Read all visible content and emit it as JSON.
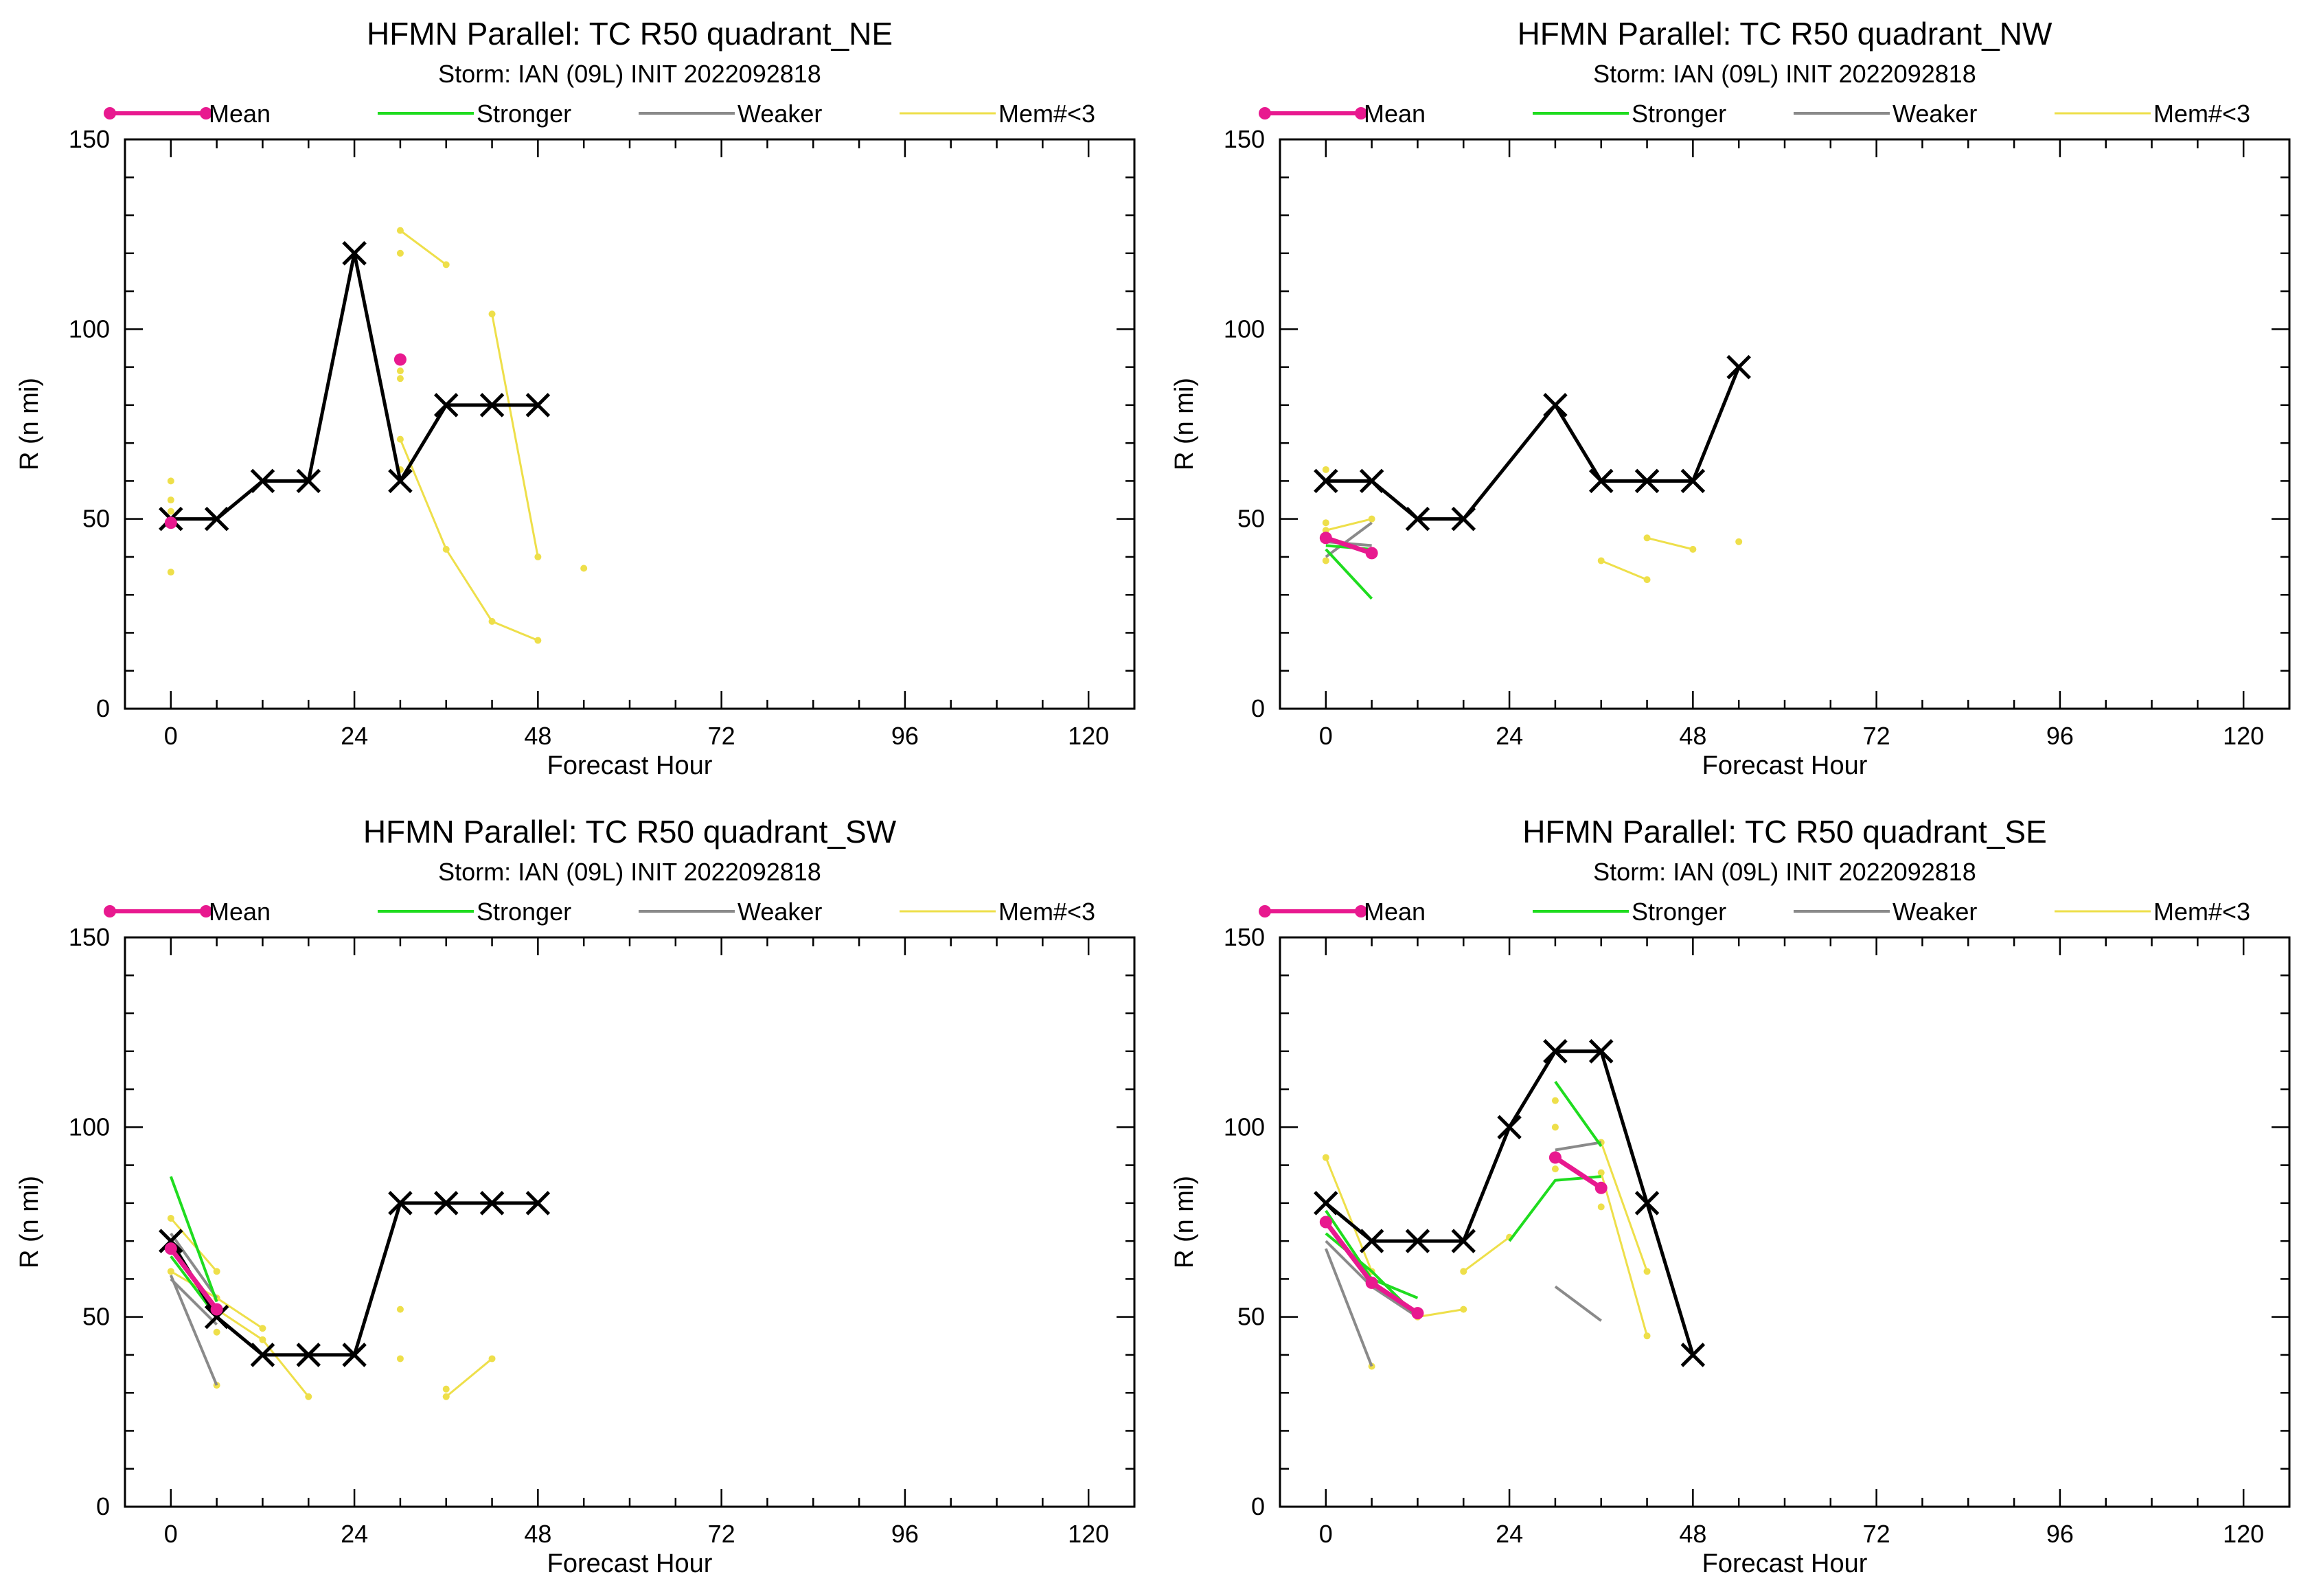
{
  "colors": {
    "mean": "#e8198f",
    "stronger": "#1fdc1f",
    "weaker": "#8a8a8a",
    "few_members": "#eedf4a",
    "official": "#000000"
  },
  "legend": {
    "mean": "Mean",
    "stronger": "Stronger",
    "weaker": "Weaker",
    "few_members": "Mem#<3"
  },
  "chart_data": [
    {
      "type": "line",
      "title": "HFMN Parallel: TC  R50 quadrant_NE",
      "subtitle": "Storm: IAN (09L) INIT 2022092818",
      "xlabel": "Forecast Hour",
      "ylabel": "R (n mi)",
      "xlim": [
        -6,
        126
      ],
      "ylim": [
        0,
        150
      ],
      "xticks": [
        0,
        24,
        48,
        72,
        96,
        120
      ],
      "yticks": [
        0,
        50,
        100,
        150
      ],
      "legend_position": "top",
      "official": {
        "x": [
          0,
          6,
          12,
          18,
          24,
          30,
          36,
          42,
          48
        ],
        "y": [
          50,
          50,
          60,
          60,
          120,
          60,
          80,
          80,
          80
        ]
      },
      "mean": [
        {
          "x": [
            0
          ],
          "y": [
            49
          ]
        },
        {
          "x": [
            30
          ],
          "y": [
            92
          ]
        }
      ],
      "stronger": [],
      "weaker": [],
      "few_members": [
        {
          "x": [
            30,
            36
          ],
          "y": [
            126,
            117
          ]
        },
        {
          "x": [
            30,
            36,
            42,
            48
          ],
          "y": [
            71,
            42,
            23,
            18
          ]
        },
        {
          "x": [
            42,
            48
          ],
          "y": [
            104,
            40
          ]
        },
        {
          "x": [
            0
          ],
          "y": [
            60
          ]
        },
        {
          "x": [
            0
          ],
          "y": [
            55
          ]
        },
        {
          "x": [
            0
          ],
          "y": [
            52
          ]
        },
        {
          "x": [
            0
          ],
          "y": [
            36
          ]
        },
        {
          "x": [
            30
          ],
          "y": [
            120
          ]
        },
        {
          "x": [
            30
          ],
          "y": [
            89
          ]
        },
        {
          "x": [
            30
          ],
          "y": [
            87
          ]
        },
        {
          "x": [
            30
          ],
          "y": [
            63
          ]
        },
        {
          "x": [
            54
          ],
          "y": [
            37
          ]
        }
      ]
    },
    {
      "type": "line",
      "title": "HFMN Parallel: TC  R50 quadrant_NW",
      "subtitle": "Storm: IAN (09L) INIT 2022092818",
      "xlabel": "Forecast Hour",
      "ylabel": "R (n mi)",
      "xlim": [
        -6,
        126
      ],
      "ylim": [
        0,
        150
      ],
      "xticks": [
        0,
        24,
        48,
        72,
        96,
        120
      ],
      "yticks": [
        0,
        50,
        100,
        150
      ],
      "legend_position": "top",
      "official": {
        "x": [
          0,
          6,
          12,
          18,
          30,
          36,
          42,
          48,
          54
        ],
        "y": [
          60,
          60,
          50,
          50,
          80,
          60,
          60,
          60,
          90
        ]
      },
      "mean": [
        {
          "x": [
            0,
            6
          ],
          "y": [
            45,
            41
          ]
        }
      ],
      "stronger": [
        {
          "x": [
            0,
            6
          ],
          "y": [
            42,
            29
          ]
        },
        {
          "x": [
            0,
            6
          ],
          "y": [
            43,
            42
          ]
        }
      ],
      "weaker": [
        {
          "x": [
            0,
            6
          ],
          "y": [
            40,
            49
          ]
        },
        {
          "x": [
            0,
            6
          ],
          "y": [
            44,
            43
          ]
        }
      ],
      "few_members": [
        {
          "x": [
            36,
            42
          ],
          "y": [
            39,
            34
          ]
        },
        {
          "x": [
            42,
            48
          ],
          "y": [
            45,
            42
          ]
        },
        {
          "x": [
            0,
            6
          ],
          "y": [
            47,
            50
          ]
        },
        {
          "x": [
            0
          ],
          "y": [
            63
          ]
        },
        {
          "x": [
            0
          ],
          "y": [
            49
          ]
        },
        {
          "x": [
            0
          ],
          "y": [
            39
          ]
        },
        {
          "x": [
            54
          ],
          "y": [
            44
          ]
        }
      ]
    },
    {
      "type": "line",
      "title": "HFMN Parallel: TC  R50 quadrant_SW",
      "subtitle": "Storm: IAN (09L) INIT 2022092818",
      "xlabel": "Forecast Hour",
      "ylabel": "R (n mi)",
      "xlim": [
        -6,
        126
      ],
      "ylim": [
        0,
        150
      ],
      "xticks": [
        0,
        24,
        48,
        72,
        96,
        120
      ],
      "yticks": [
        0,
        50,
        100,
        150
      ],
      "legend_position": "top",
      "official": {
        "x": [
          0,
          6,
          12,
          18,
          24,
          30,
          36,
          42,
          48
        ],
        "y": [
          70,
          50,
          40,
          40,
          40,
          80,
          80,
          80,
          80
        ]
      },
      "mean": [
        {
          "x": [
            0,
            6
          ],
          "y": [
            68,
            52
          ]
        }
      ],
      "stronger": [
        {
          "x": [
            0,
            6
          ],
          "y": [
            87,
            54
          ]
        },
        {
          "x": [
            0,
            6
          ],
          "y": [
            66,
            50
          ]
        }
      ],
      "weaker": [
        {
          "x": [
            0,
            6
          ],
          "y": [
            61,
            32
          ]
        },
        {
          "x": [
            0,
            6
          ],
          "y": [
            60,
            48
          ]
        },
        {
          "x": [
            0,
            6
          ],
          "y": [
            72,
            55
          ]
        }
      ],
      "few_members": [
        {
          "x": [
            0,
            6,
            12
          ],
          "y": [
            62,
            55,
            47
          ]
        },
        {
          "x": [
            6,
            12,
            18
          ],
          "y": [
            52,
            44,
            29
          ]
        },
        {
          "x": [
            36,
            42
          ],
          "y": [
            29,
            39
          ]
        },
        {
          "x": [
            0,
            6
          ],
          "y": [
            76,
            62
          ]
        },
        {
          "x": [
            30
          ],
          "y": [
            52
          ]
        },
        {
          "x": [
            30
          ],
          "y": [
            39
          ]
        },
        {
          "x": [
            36
          ],
          "y": [
            31
          ]
        },
        {
          "x": [
            6
          ],
          "y": [
            32
          ]
        },
        {
          "x": [
            6
          ],
          "y": [
            46
          ]
        }
      ]
    },
    {
      "type": "line",
      "title": "HFMN Parallel: TC  R50 quadrant_SE",
      "subtitle": "Storm: IAN (09L) INIT 2022092818",
      "xlabel": "Forecast Hour",
      "ylabel": "R (n mi)",
      "xlim": [
        -6,
        126
      ],
      "ylim": [
        0,
        150
      ],
      "xticks": [
        0,
        24,
        48,
        72,
        96,
        120
      ],
      "yticks": [
        0,
        50,
        100,
        150
      ],
      "legend_position": "top",
      "official": {
        "x": [
          0,
          6,
          12,
          18,
          24,
          30,
          36,
          42,
          48
        ],
        "y": [
          80,
          70,
          70,
          70,
          100,
          120,
          120,
          80,
          40
        ]
      },
      "mean": [
        {
          "x": [
            0,
            6,
            12
          ],
          "y": [
            75,
            59,
            51
          ]
        },
        {
          "x": [
            30,
            36
          ],
          "y": [
            92,
            84
          ]
        }
      ],
      "stronger": [
        {
          "x": [
            0,
            6,
            12
          ],
          "y": [
            78,
            60,
            55
          ]
        },
        {
          "x": [
            0,
            6,
            12
          ],
          "y": [
            72,
            62,
            50
          ]
        },
        {
          "x": [
            24,
            30,
            36
          ],
          "y": [
            70,
            86,
            87
          ]
        },
        {
          "x": [
            30,
            36
          ],
          "y": [
            112,
            95
          ]
        }
      ],
      "weaker": [
        {
          "x": [
            0,
            6
          ],
          "y": [
            68,
            37
          ]
        },
        {
          "x": [
            0,
            6,
            12
          ],
          "y": [
            70,
            58,
            50
          ]
        },
        {
          "x": [
            30,
            36
          ],
          "y": [
            58,
            49
          ]
        },
        {
          "x": [
            30,
            36
          ],
          "y": [
            94,
            96
          ]
        }
      ],
      "few_members": [
        {
          "x": [
            0,
            6
          ],
          "y": [
            92,
            62
          ]
        },
        {
          "x": [
            12,
            18
          ],
          "y": [
            50,
            52
          ]
        },
        {
          "x": [
            36,
            42
          ],
          "y": [
            96,
            62
          ]
        },
        {
          "x": [
            36,
            42
          ],
          "y": [
            88,
            45
          ]
        },
        {
          "x": [
            18,
            24
          ],
          "y": [
            62,
            71
          ]
        },
        {
          "x": [
            30
          ],
          "y": [
            107
          ]
        },
        {
          "x": [
            30
          ],
          "y": [
            100
          ]
        },
        {
          "x": [
            30
          ],
          "y": [
            89
          ]
        },
        {
          "x": [
            36
          ],
          "y": [
            79
          ]
        },
        {
          "x": [
            6
          ],
          "y": [
            37
          ]
        }
      ]
    }
  ]
}
